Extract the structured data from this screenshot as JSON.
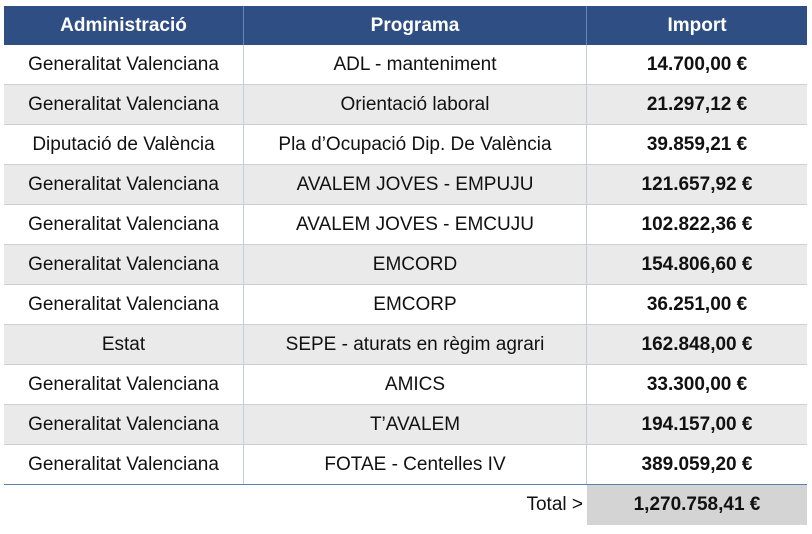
{
  "header": {
    "col1": "Administració",
    "col2": "Programa",
    "col3": "Import"
  },
  "rows": [
    {
      "admin": "Generalitat Valenciana",
      "programa": "ADL - manteniment",
      "import": "14.700,00 €"
    },
    {
      "admin": "Generalitat Valenciana",
      "programa": "Orientació laboral",
      "import": "21.297,12 €"
    },
    {
      "admin": "Diputació de València",
      "programa": "Pla d’Ocupació Dip. De València",
      "import": "39.859,21 €"
    },
    {
      "admin": "Generalitat Valenciana",
      "programa": "AVALEM JOVES - EMPUJU",
      "import": "121.657,92 €"
    },
    {
      "admin": "Generalitat Valenciana",
      "programa": "AVALEM JOVES - EMCUJU",
      "import": "102.822,36 €"
    },
    {
      "admin": "Generalitat Valenciana",
      "programa": "EMCORD",
      "import": "154.806,60 €"
    },
    {
      "admin": "Generalitat Valenciana",
      "programa": "EMCORP",
      "import": "36.251,00 €"
    },
    {
      "admin": "Estat",
      "programa": "SEPE - aturats en règim agrari",
      "import": "162.848,00 €"
    },
    {
      "admin": "Generalitat Valenciana",
      "programa": "AMICS",
      "import": "33.300,00 €"
    },
    {
      "admin": "Generalitat Valenciana",
      "programa": "T’AVALEM",
      "import": "194.157,00 €"
    },
    {
      "admin": "Generalitat Valenciana",
      "programa": "FOTAE - Centelles IV",
      "import": "389.059,20 €"
    }
  ],
  "total": {
    "label": "Total >",
    "value": "1,270.758,41 €"
  },
  "colors": {
    "header_bg": "#2f4f84",
    "stripe_bg": "#eaeaea",
    "total_bg": "#d4d4d4"
  }
}
